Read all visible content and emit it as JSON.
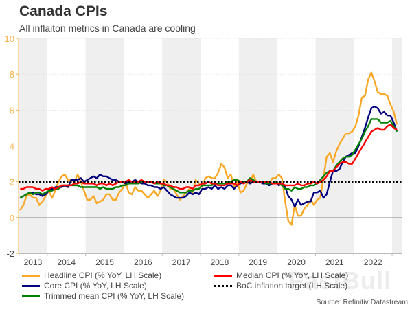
{
  "title": "Canada CPIs",
  "subtitle": "All inflaiton metrics in Canada are cooling",
  "source": "Source: Refinitiv Datastream",
  "watermark": "FastBull",
  "chart_data": {
    "type": "line",
    "title": "Canada CPIs",
    "subtitle": "All inflaiton metrics in Canada are cooling",
    "xlabel": "",
    "ylabel": "",
    "x_start": "2013-04",
    "x_end": "2023-02",
    "x_frequency": "monthly",
    "xlim": [
      2013.25,
      2023.25
    ],
    "ylim": [
      -2,
      10
    ],
    "yticks": [
      -2,
      0,
      2,
      4,
      6,
      8,
      10
    ],
    "year_labels": [
      "2013",
      "2014",
      "2015",
      "2016",
      "2017",
      "2018",
      "2019",
      "2020",
      "2021",
      "2022"
    ],
    "alternating_year_shading": true,
    "grid": "horizontal dotted",
    "legend_placement": "bottom",
    "axis_color": "#f7b34a",
    "series": [
      {
        "name": "Headline CPI (% YoY, LH Scale)",
        "color": "#f9a825",
        "values": [
          0.4,
          0.7,
          1.2,
          1.3,
          1.1,
          1.1,
          0.7,
          0.9,
          1.2,
          1.5,
          1.1,
          1.5,
          2.0,
          2.3,
          2.4,
          2.1,
          2.1,
          2.0,
          2.4,
          2.0,
          1.5,
          1.0,
          1.0,
          1.2,
          0.8,
          0.9,
          1.0,
          1.3,
          1.3,
          1.0,
          1.0,
          1.4,
          1.6,
          2.0,
          1.4,
          1.3,
          1.7,
          1.5,
          1.5,
          1.3,
          1.1,
          1.3,
          1.5,
          1.2,
          1.5,
          2.1,
          2.0,
          1.6,
          1.6,
          1.3,
          1.0,
          1.2,
          1.4,
          1.6,
          1.4,
          2.1,
          1.9,
          1.7,
          2.2,
          2.3,
          2.2,
          2.2,
          2.5,
          3.0,
          2.8,
          2.2,
          2.4,
          1.7,
          2.0,
          1.4,
          1.5,
          1.9,
          2.0,
          2.4,
          2.0,
          2.0,
          1.9,
          1.9,
          1.9,
          2.2,
          2.2,
          2.4,
          2.2,
          0.9,
          -0.2,
          -0.4,
          0.7,
          0.1,
          0.1,
          0.5,
          0.7,
          1.0,
          0.7,
          1.0,
          1.1,
          2.2,
          3.4,
          3.6,
          3.1,
          3.7,
          4.1,
          4.4,
          4.7,
          4.7,
          4.8,
          5.1,
          5.7,
          6.7,
          6.8,
          7.7,
          8.1,
          7.6,
          7.0,
          6.9,
          6.9,
          6.8,
          6.3,
          5.9,
          5.2
        ]
      },
      {
        "name": "Core CPI (% YoY, LH Scale)",
        "color": "#000080",
        "values": [
          1.1,
          1.2,
          1.3,
          1.4,
          1.4,
          1.3,
          1.3,
          1.2,
          1.3,
          1.5,
          1.6,
          1.7,
          1.7,
          1.7,
          1.8,
          1.7,
          2.1,
          2.1,
          2.1,
          2.2,
          2.0,
          2.1,
          2.2,
          2.3,
          2.2,
          2.4,
          2.3,
          2.3,
          2.2,
          2.1,
          2.1,
          2.0,
          2.0,
          1.9,
          2.0,
          2.0,
          2.1,
          2.0,
          1.9,
          1.9,
          1.8,
          1.8,
          1.7,
          1.7,
          1.6,
          1.7,
          1.5,
          1.3,
          1.2,
          1.1,
          1.1,
          1.1,
          1.2,
          1.4,
          1.3,
          1.4,
          1.3,
          1.6,
          1.6,
          1.7,
          1.6,
          1.8,
          1.6,
          1.7,
          1.6,
          1.8,
          1.8,
          1.6,
          1.8,
          1.9,
          2.0,
          2.0,
          1.9,
          2.0,
          2.0,
          2.0,
          1.9,
          1.9,
          1.8,
          1.9,
          2.0,
          1.8,
          1.9,
          1.7,
          1.2,
          1.0,
          0.6,
          1.0,
          0.7,
          0.8,
          0.9,
          0.9,
          1.4,
          1.4,
          1.5,
          1.1,
          1.3,
          2.0,
          2.6,
          2.6,
          2.7,
          3.1,
          3.4,
          3.5,
          3.6,
          3.6,
          4.0,
          4.5,
          5.0,
          5.6,
          6.1,
          6.2,
          6.1,
          5.8,
          5.9,
          5.7,
          5.7,
          5.3,
          4.8
        ]
      },
      {
        "name": "Trimmed mean CPI (% YoY, LH Scale)",
        "color": "#008000",
        "values": [
          1.1,
          1.2,
          1.3,
          1.4,
          1.3,
          1.4,
          1.4,
          1.3,
          1.4,
          1.5,
          1.5,
          1.6,
          1.6,
          1.8,
          1.8,
          1.8,
          1.8,
          1.8,
          1.8,
          1.7,
          1.7,
          1.7,
          1.7,
          1.7,
          1.7,
          1.6,
          1.7,
          1.6,
          1.6,
          1.6,
          1.7,
          1.7,
          1.8,
          1.8,
          1.9,
          1.9,
          1.9,
          1.9,
          2.0,
          2.0,
          2.0,
          2.0,
          1.9,
          1.9,
          1.9,
          1.8,
          1.8,
          1.7,
          1.6,
          1.5,
          1.4,
          1.4,
          1.4,
          1.5,
          1.5,
          1.6,
          1.6,
          1.8,
          1.8,
          1.8,
          1.8,
          1.9,
          1.9,
          1.9,
          1.9,
          2.0,
          2.0,
          2.1,
          2.1,
          2.0,
          2.0,
          2.0,
          2.2,
          2.1,
          2.0,
          2.0,
          2.0,
          1.9,
          1.9,
          1.9,
          2.0,
          1.9,
          1.8,
          1.6,
          1.6,
          1.5,
          1.7,
          1.6,
          1.6,
          1.7,
          1.7,
          1.8,
          1.8,
          1.9,
          2.1,
          2.3,
          2.5,
          2.6,
          2.6,
          2.9,
          3.1,
          3.3,
          3.4,
          3.4,
          3.5,
          3.8,
          4.1,
          4.4,
          4.8,
          5.1,
          5.5,
          5.5,
          5.5,
          5.3,
          5.3,
          5.3,
          5.4,
          5.1,
          4.8
        ]
      },
      {
        "name": "Median CPI (% YoY, LH Scale)",
        "color": "#ff0000",
        "values": [
          1.6,
          1.6,
          1.7,
          1.7,
          1.7,
          1.6,
          1.6,
          1.5,
          1.6,
          1.6,
          1.7,
          1.6,
          1.7,
          1.8,
          1.8,
          1.8,
          1.8,
          1.9,
          1.9,
          2.0,
          1.9,
          1.9,
          1.9,
          1.9,
          1.8,
          1.9,
          1.9,
          1.8,
          1.9,
          1.8,
          1.9,
          2.0,
          2.0,
          2.0,
          2.1,
          2.0,
          2.0,
          2.0,
          2.1,
          2.0,
          2.0,
          2.0,
          1.9,
          2.0,
          1.9,
          1.9,
          1.8,
          1.8,
          1.7,
          1.7,
          1.6,
          1.6,
          1.7,
          1.7,
          1.6,
          1.8,
          1.8,
          1.9,
          1.9,
          2.0,
          1.9,
          1.9,
          1.8,
          1.8,
          1.8,
          1.9,
          1.9,
          1.9,
          1.8,
          2.0,
          1.9,
          2.0,
          2.1,
          2.0,
          2.0,
          2.0,
          2.0,
          2.0,
          2.0,
          1.9,
          1.9,
          1.9,
          1.9,
          1.8,
          1.8,
          1.8,
          1.8,
          1.9,
          1.8,
          1.8,
          1.9,
          1.9,
          2.0,
          1.9,
          2.0,
          2.1,
          2.3,
          2.6,
          2.6,
          2.8,
          3.0,
          3.1,
          3.1,
          3.0,
          3.0,
          3.3,
          3.6,
          3.9,
          4.2,
          4.5,
          4.8,
          4.9,
          5.0,
          4.9,
          4.9,
          5.1,
          5.2,
          5.0,
          4.9
        ]
      },
      {
        "name": "BoC inflation target (LH Scale)",
        "color": "#000000",
        "style": "dotted",
        "constant": 2
      }
    ]
  },
  "legend": [
    {
      "label": "Headline CPI (% YoY, LH Scale)",
      "color": "#f9a825"
    },
    {
      "label": "Core CPI (% YoY, LH Scale)",
      "color": "#000080"
    },
    {
      "label": "Trimmed mean CPI (% YoY, LH Scale)",
      "color": "#008000"
    },
    {
      "label": "Median CPI (% YoY, LH Scale)",
      "color": "#ff0000"
    },
    {
      "label": "BoC inflation target (LH Scale)",
      "color": "#000000",
      "style": "dotted"
    }
  ]
}
